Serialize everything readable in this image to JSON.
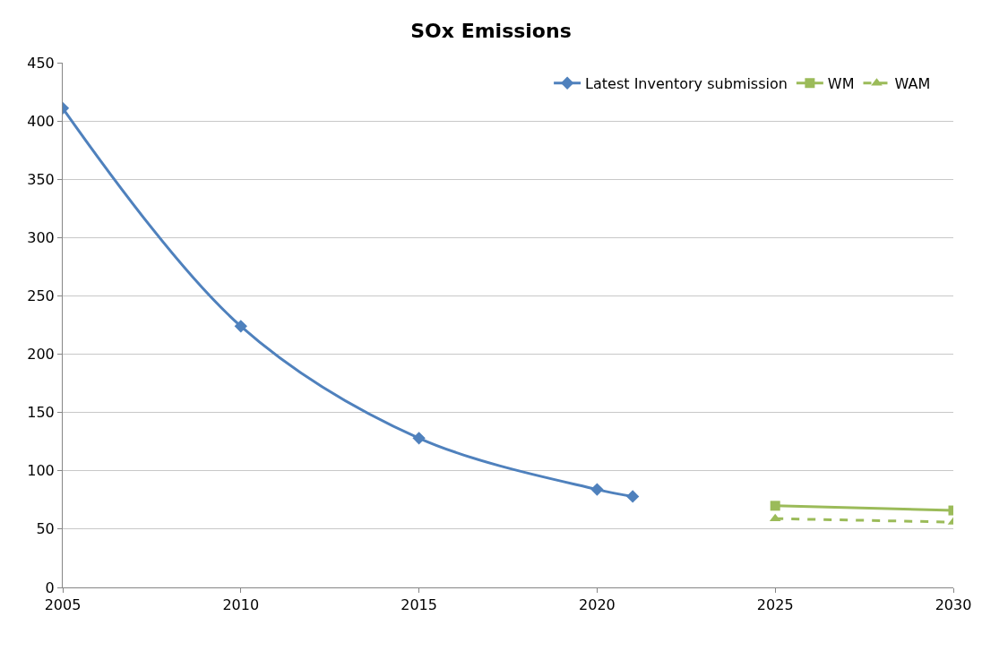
{
  "chart_data": {
    "type": "line",
    "title": "SOx Emissions",
    "series": [
      {
        "name": "Latest Inventory submission",
        "color": "#4f81bd",
        "x": [
          2005,
          2010,
          2015,
          2020,
          2021
        ],
        "values": [
          411,
          224,
          128,
          84,
          78
        ],
        "marker": "diamond",
        "line_style": "solid"
      },
      {
        "name": "WM",
        "color": "#9bbb59",
        "x": [
          2025,
          2030
        ],
        "values": [
          70,
          66
        ],
        "marker": "square",
        "line_style": "solid"
      },
      {
        "name": "WAM",
        "color": "#9bbb59",
        "x": [
          2025,
          2030
        ],
        "values": [
          59,
          56
        ],
        "marker": "triangle",
        "line_style": "dashed"
      }
    ],
    "xlim": [
      2005,
      2030
    ],
    "xticks": [
      2005,
      2010,
      2015,
      2020,
      2025,
      2030
    ],
    "ylim": [
      0,
      450
    ],
    "yticks": [
      0,
      50,
      100,
      150,
      200,
      250,
      300,
      350,
      400,
      450
    ],
    "grid": "y",
    "legend": "top right"
  }
}
